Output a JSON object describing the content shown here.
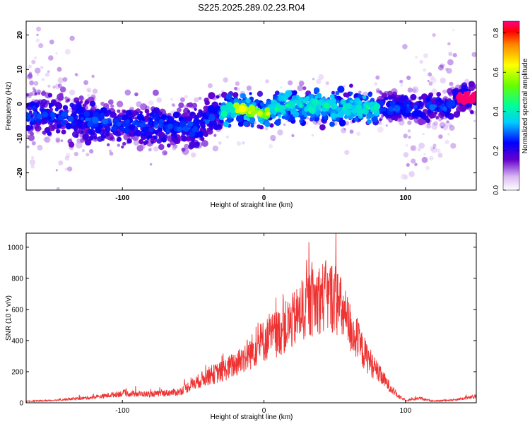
{
  "title": "S225.2025.289.02.23.R04",
  "chart_data": [
    {
      "type": "heatmap",
      "xlabel": "Height of straight line (km)",
      "ylabel": "Frequency (Hz)",
      "xlim": [
        -168,
        150
      ],
      "ylim": [
        -25,
        24
      ],
      "xticks": [
        -100,
        0,
        100
      ],
      "xtick_labels": [
        "-100",
        "0",
        "100"
      ],
      "yticks": [
        -20,
        -10,
        0,
        10,
        20
      ],
      "ytick_labels": [
        "-20",
        "-10",
        "0",
        "10",
        "20"
      ],
      "center_track": {
        "x": [
          -160,
          -120,
          -80,
          -50,
          -35,
          -20,
          0,
          20,
          50,
          80,
          100,
          130,
          140,
          148
        ],
        "y": [
          -3,
          -5,
          -6,
          -7,
          -4,
          -1,
          -3,
          0,
          -1,
          -1,
          -1,
          -1,
          2,
          2
        ]
      },
      "colorbar": {
        "label": "Normalized spectral amplitude",
        "range": [
          0.0,
          0.86
        ],
        "ticks": [
          0.0,
          0.2,
          0.4,
          0.6,
          0.8
        ],
        "tick_labels": [
          "0.0",
          "0.2",
          "0.4",
          "0.6",
          "0.8"
        ]
      }
    },
    {
      "type": "line",
      "xlabel": "Height of straight line (km)",
      "ylabel": "SNR (10 * v/v)",
      "xlim": [
        -168,
        150
      ],
      "ylim": [
        0,
        1090
      ],
      "xticks": [
        -100,
        0,
        100
      ],
      "xtick_labels": [
        "-100",
        "0",
        "100"
      ],
      "yticks": [
        0,
        200,
        400,
        600,
        800,
        1000
      ],
      "ytick_labels": [
        "0",
        "200",
        "400",
        "600",
        "800",
        "1000"
      ],
      "series": [
        {
          "name": "SNR",
          "color": "#ee3333",
          "envelope": {
            "x": [
              -168,
              -150,
              -120,
              -100,
              -80,
              -60,
              -50,
              -40,
              -30,
              -20,
              -10,
              0,
              10,
              20,
              30,
              40,
              50,
              60,
              70,
              80,
              90,
              95,
              100,
              110,
              120,
              135,
              150
            ],
            "y": [
              10,
              15,
              35,
              60,
              55,
              70,
              120,
              170,
              200,
              250,
              320,
              400,
              450,
              520,
              620,
              680,
              680,
              500,
              330,
              200,
              90,
              40,
              15,
              30,
              10,
              20,
              40
            ]
          }
        }
      ]
    }
  ]
}
